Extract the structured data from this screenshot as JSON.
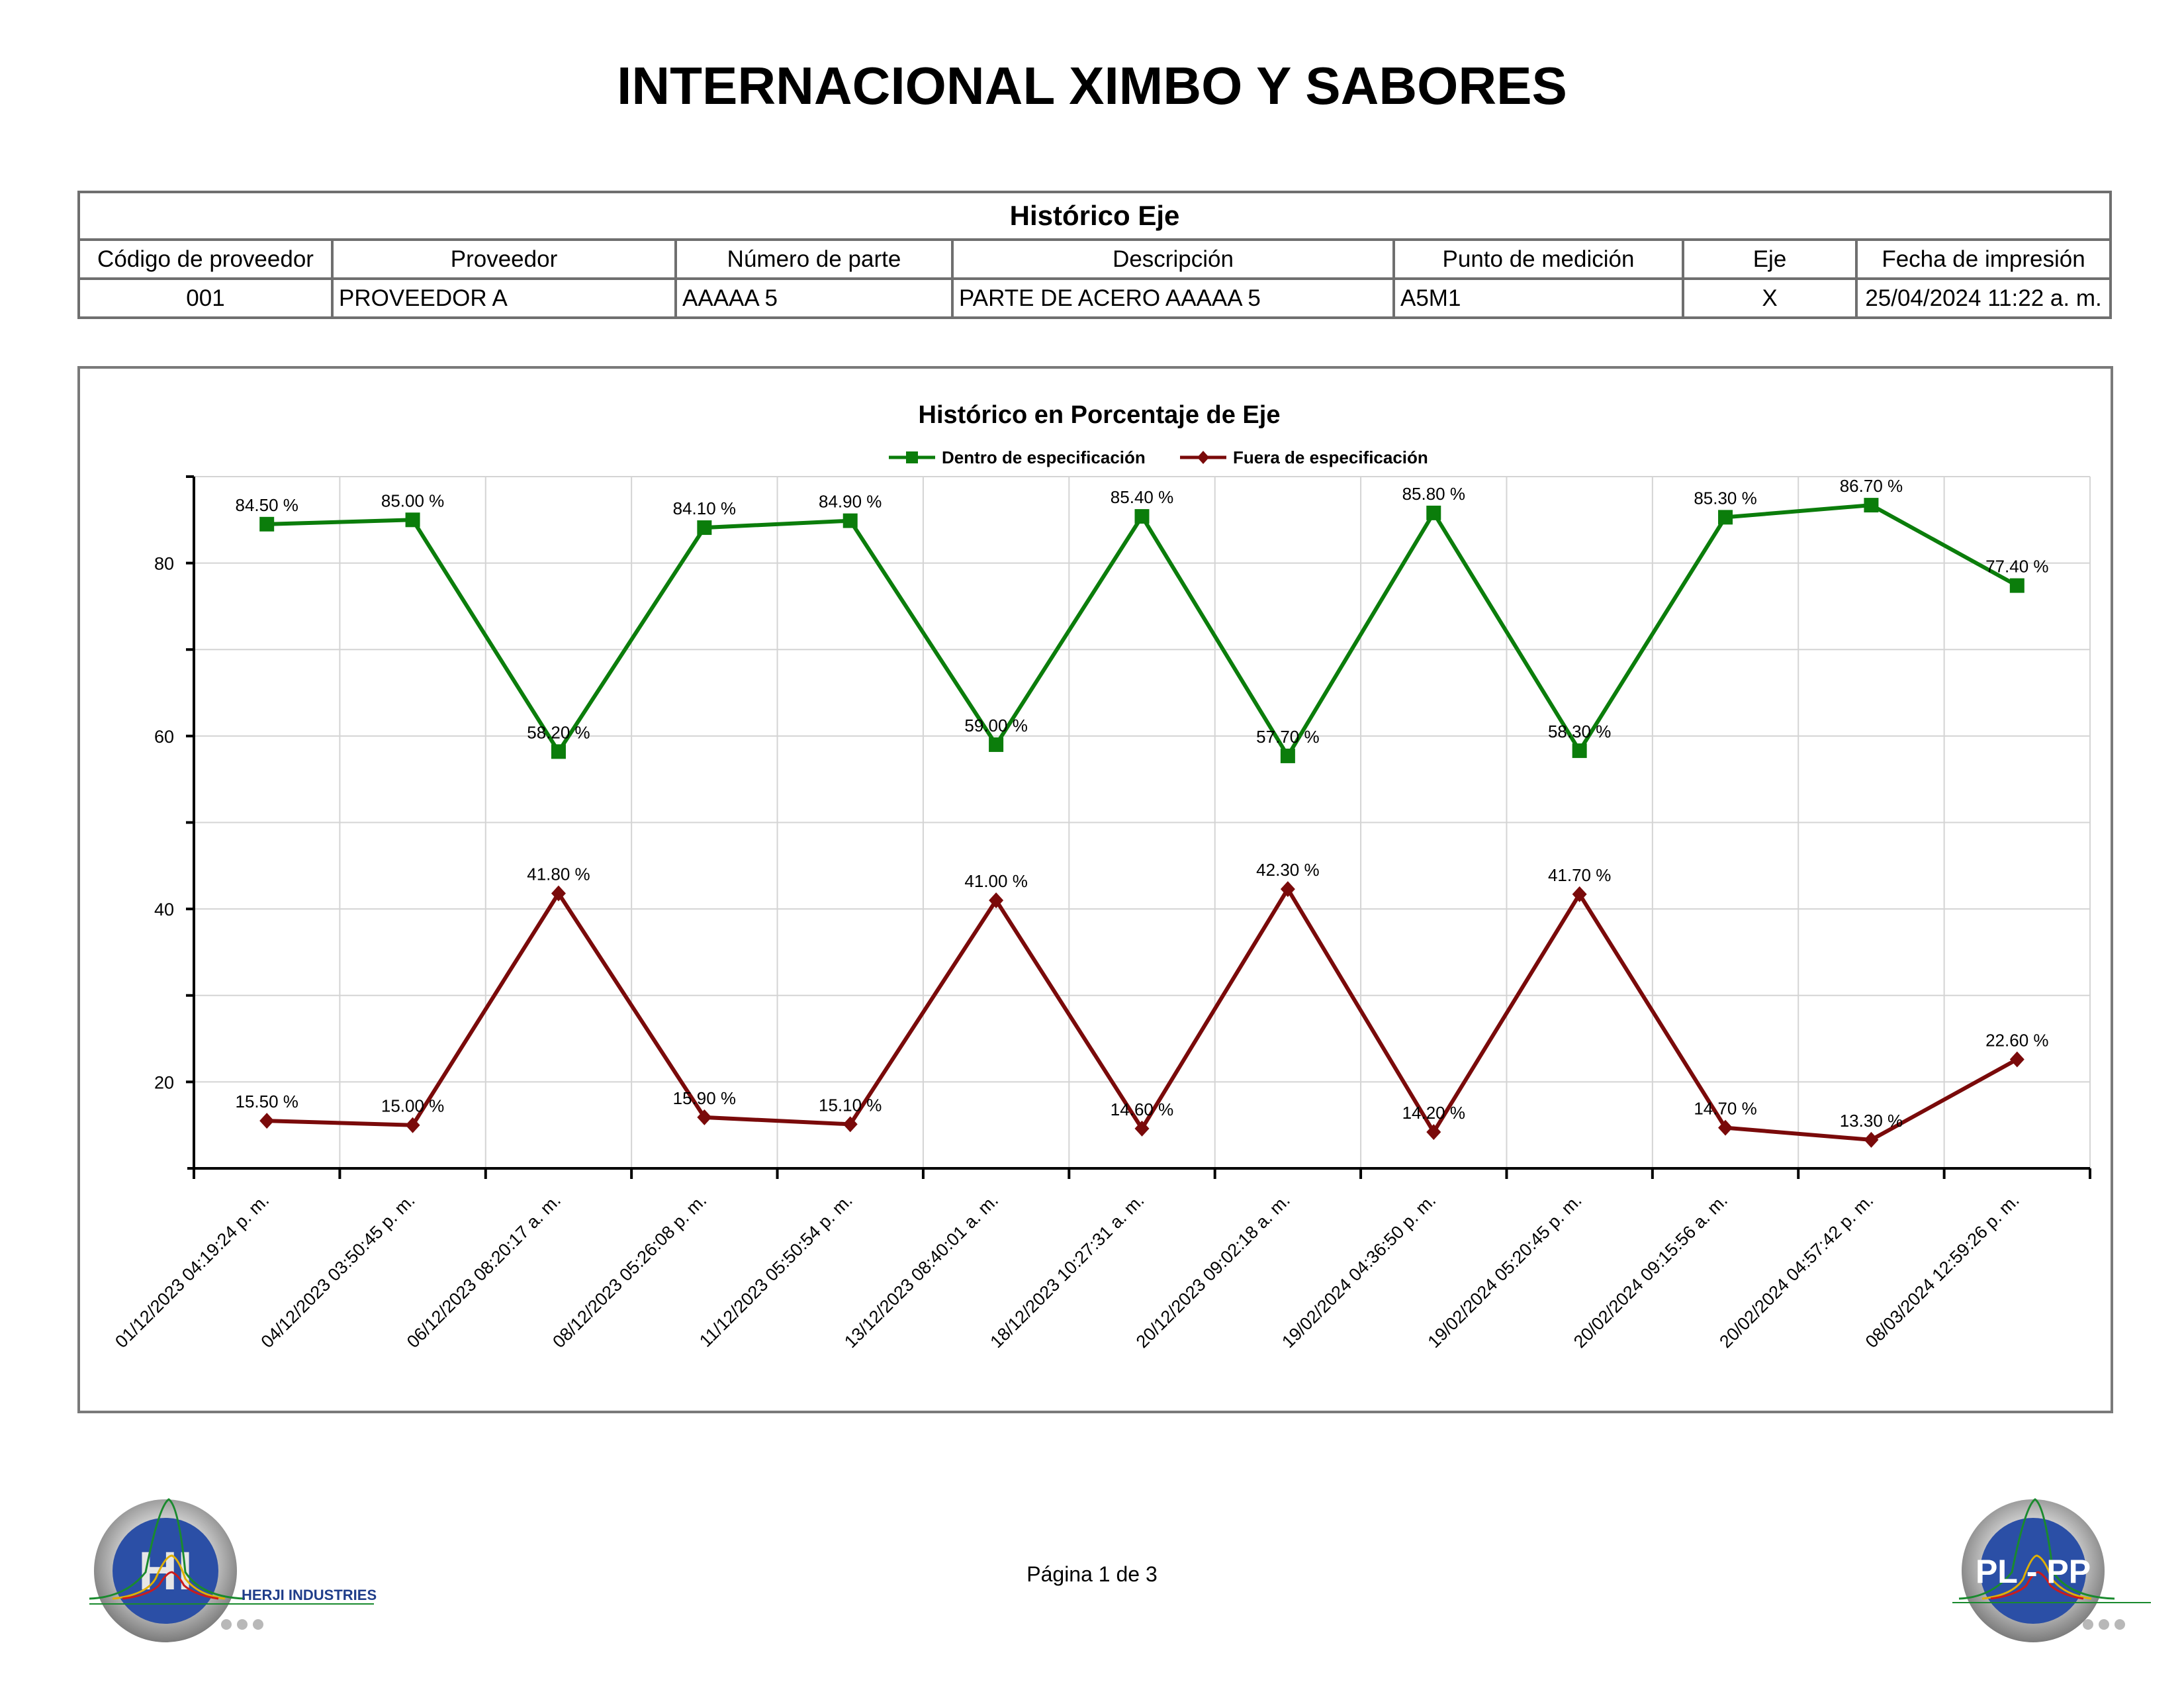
{
  "report": {
    "title": "INTERNACIONAL XIMBO Y SABORES",
    "page": "Página 1 de 3"
  },
  "info_table": {
    "caption": "Histórico Eje",
    "headers": [
      "Código de proveedor",
      "Proveedor",
      "Número de parte",
      "Descripción",
      "Punto de medición",
      "Eje",
      "Fecha de impresión"
    ],
    "values": [
      "001",
      "PROVEEDOR A",
      "AAAAA 5",
      "PARTE DE ACERO AAAAA 5",
      "A5M1",
      "X",
      "25/04/2024 11:22 a. m."
    ]
  },
  "logos": {
    "left_text": "HERJI INDUSTRIES",
    "left_mark": "HI",
    "right_mark": "PL - PP"
  },
  "colors": {
    "dentro": "#0b7d0b",
    "fuera": "#7a0a0a",
    "grid": "#d4d4d4",
    "logo_blue": "#2b4fa6"
  },
  "chart_data": {
    "type": "line",
    "title": "Histórico en Porcentaje de Eje",
    "xlabel": "",
    "ylabel": "",
    "ylim": [
      10,
      90
    ],
    "yticks": [
      20,
      40,
      60,
      80
    ],
    "grid": true,
    "legend_position": "top-center",
    "categories": [
      "01/12/2023 04:19:24 p. m.",
      "04/12/2023 03:50:45 p. m.",
      "06/12/2023 08:20:17 a. m.",
      "08/12/2023 05:26:08 p. m.",
      "11/12/2023 05:50:54 p. m.",
      "13/12/2023 08:40:01 a. m.",
      "18/12/2023 10:27:31 a. m.",
      "20/12/2023 09:02:18 a. m.",
      "19/02/2024 04:36:50 p. m.",
      "19/02/2024 05:20:45 p. m.",
      "20/02/2024 09:15:56 a. m.",
      "20/02/2024 04:57:42 p. m.",
      "08/03/2024 12:59:26 p. m."
    ],
    "series": [
      {
        "name": "Dentro de especificación",
        "marker": "square",
        "values": [
          84.5,
          85.0,
          58.2,
          84.1,
          84.9,
          59.0,
          85.4,
          57.7,
          85.8,
          58.3,
          85.3,
          86.7,
          77.4
        ],
        "labels": [
          "84.50 %",
          "85.00 %",
          "58.20 %",
          "84.10 %",
          "84.90 %",
          "59.00 %",
          "85.40 %",
          "57.70 %",
          "85.80 %",
          "58.30 %",
          "85.30 %",
          "86.70 %",
          "77.40 %"
        ]
      },
      {
        "name": "Fuera de especificación",
        "marker": "diamond",
        "values": [
          15.5,
          15.0,
          41.8,
          15.9,
          15.1,
          41.0,
          14.6,
          42.3,
          14.2,
          41.7,
          14.7,
          13.3,
          22.6
        ],
        "labels": [
          "15.50 %",
          "15.00 %",
          "41.80 %",
          "15.90 %",
          "15.10 %",
          "41.00 %",
          "14.60 %",
          "42.30 %",
          "14.20 %",
          "41.70 %",
          "14.70 %",
          "13.30 %",
          "22.60 %"
        ]
      }
    ]
  }
}
